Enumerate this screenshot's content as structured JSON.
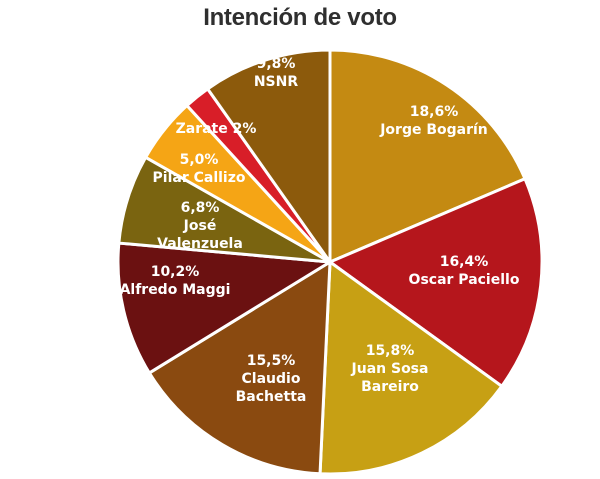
{
  "chart_data": {
    "type": "pie",
    "title": "Intención de voto",
    "slices": [
      {
        "label_lines": [
          "18,6%",
          "Jorge Bogarín"
        ],
        "value": 18.6,
        "color": "#C48A12"
      },
      {
        "label_lines": [
          "16,4%",
          "Oscar Paciello"
        ],
        "value": 16.4,
        "color": "#B5161C"
      },
      {
        "label_lines": [
          "15,8%",
          "Juan Sosa",
          "Bareiro"
        ],
        "value": 15.8,
        "color": "#C7A014"
      },
      {
        "label_lines": [
          "15,5%",
          "Claudio",
          "Bachetta"
        ],
        "value": 15.5,
        "color": "#8A4A10"
      },
      {
        "label_lines": [
          "10,2%",
          "Alfredo Maggi"
        ],
        "value": 10.2,
        "color": "#6B1111"
      },
      {
        "label_lines": [
          "6,8%",
          "José",
          "Valenzuela"
        ],
        "value": 6.8,
        "color": "#7A6410"
      },
      {
        "label_lines": [
          "5,0%",
          "Pilar Callizo"
        ],
        "value": 5.0,
        "color": "#F5A515"
      },
      {
        "label_lines": [
          "Zarate 2%"
        ],
        "value": 2.0,
        "color": "#D81E28"
      },
      {
        "label_lines": [
          "9,8%",
          "NSNR"
        ],
        "value": 9.8,
        "color": "#8C5A0C"
      }
    ]
  }
}
